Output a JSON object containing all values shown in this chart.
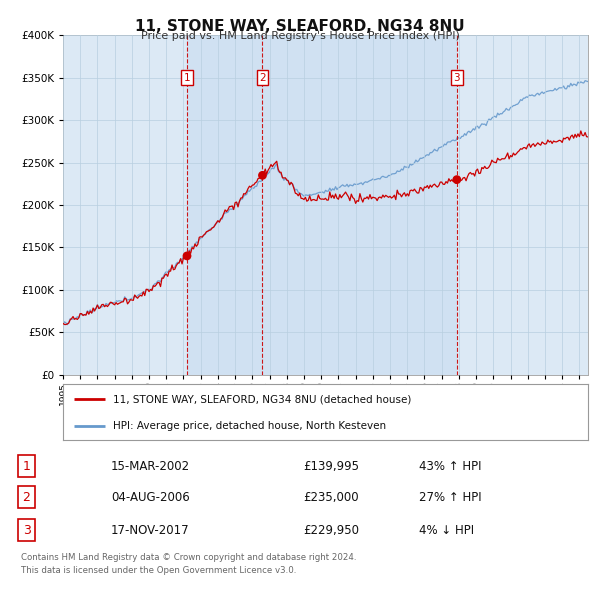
{
  "title": "11, STONE WAY, SLEAFORD, NG34 8NU",
  "subtitle": "Price paid vs. HM Land Registry's House Price Index (HPI)",
  "ylim": [
    0,
    400000
  ],
  "yticks": [
    0,
    50000,
    100000,
    150000,
    200000,
    250000,
    300000,
    350000,
    400000
  ],
  "xlim_start": 1995.0,
  "xlim_end": 2025.5,
  "sale_dates": [
    2002.204,
    2006.589,
    2017.88
  ],
  "sale_prices": [
    139995,
    235000,
    229950
  ],
  "sale_labels": [
    "1",
    "2",
    "3"
  ],
  "sale_hpi_pct": [
    "43% ↑ HPI",
    "27% ↑ HPI",
    "4% ↓ HPI"
  ],
  "sale_date_labels": [
    "15-MAR-2002",
    "04-AUG-2006",
    "17-NOV-2017"
  ],
  "sale_price_labels": [
    "£139,995",
    "£235,000",
    "£229,950"
  ],
  "legend_line1": "11, STONE WAY, SLEAFORD, NG34 8NU (detached house)",
  "legend_line2": "HPI: Average price, detached house, North Kesteven",
  "footer1": "Contains HM Land Registry data © Crown copyright and database right 2024.",
  "footer2": "This data is licensed under the Open Government Licence v3.0.",
  "red_color": "#cc0000",
  "blue_color": "#6699cc",
  "dashed_color": "#cc0000",
  "background_color": "#ffffff",
  "chart_bg_color": "#dce9f5",
  "shade_color": "#c5daf0",
  "grid_color": "#b8cfe0"
}
